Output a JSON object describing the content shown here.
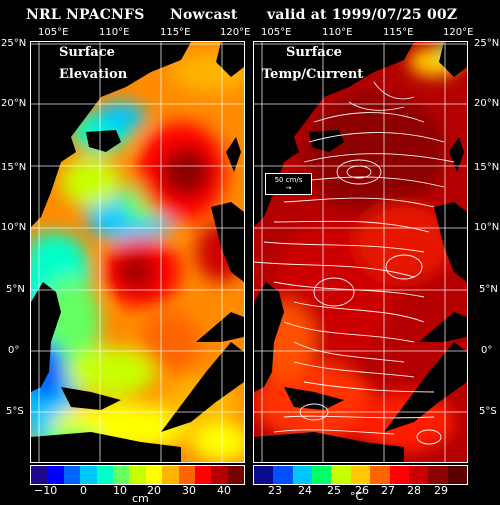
{
  "header": {
    "model": "NRL NPACNFS",
    "type": "Nowcast",
    "valid": "valid at 1999/07/25 00Z"
  },
  "left_panel": {
    "title_line1": "Surface",
    "title_line2": "Elevation",
    "lon_ticks": [
      "105°E",
      "110°E",
      "115°E",
      "120°E"
    ],
    "colorbar_ticks": [
      "−10",
      "0",
      "10",
      "20",
      "30",
      "40"
    ],
    "unit": "cm"
  },
  "right_panel": {
    "title_line1": "Surface",
    "title_line2": "Temp/Current",
    "lon_ticks": [
      "105°E",
      "110°E",
      "115°E",
      "120°E"
    ],
    "colorbar_ticks": [
      "23",
      "24",
      "25",
      "26",
      "27",
      "28",
      "29"
    ],
    "unit": "°C",
    "vector_legend": "50 cm/s"
  },
  "lat_ticks": [
    "25°N",
    "20°N",
    "15°N",
    "10°N",
    "5°N",
    "0°",
    "5°S"
  ],
  "colors": {
    "background": "#000000",
    "land": "#000000",
    "elev_scale": [
      "#1e0a8c",
      "#0000ff",
      "#0064ff",
      "#00c8ff",
      "#00ffc8",
      "#64ff64",
      "#c8ff00",
      "#ffff00",
      "#ffb400",
      "#ff6400",
      "#ff0000",
      "#b40000",
      "#780000"
    ],
    "temp_scale": [
      "#0a0a8c",
      "#0050ff",
      "#00c8ff",
      "#00ff64",
      "#c8ff00",
      "#ffc800",
      "#ff6400",
      "#ff0000",
      "#c80000",
      "#8c0000",
      "#5a0000"
    ]
  }
}
